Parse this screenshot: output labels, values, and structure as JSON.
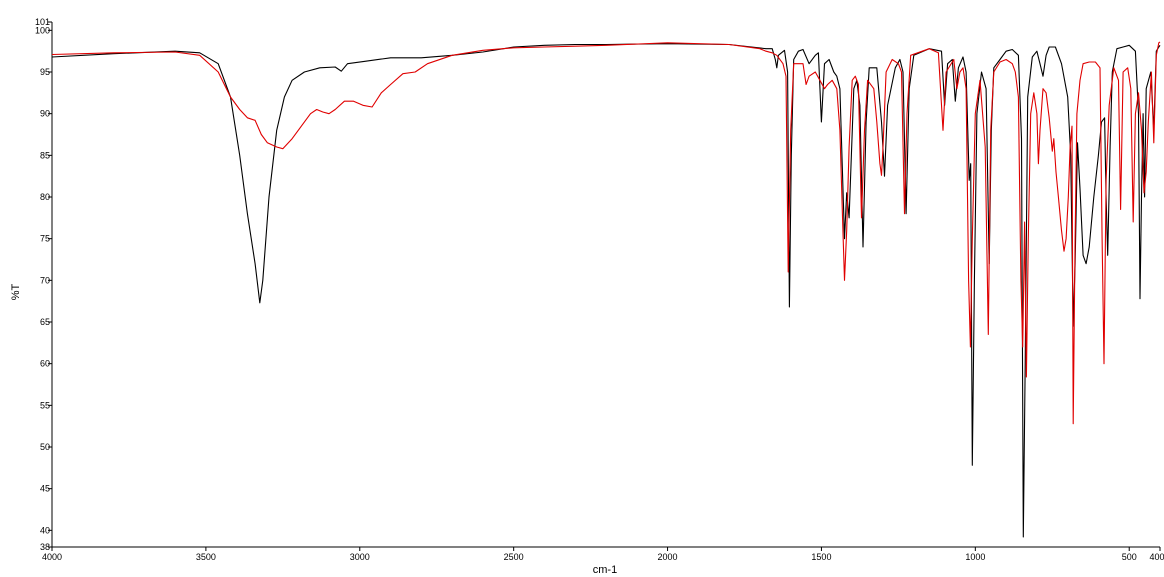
{
  "chart_data": {
    "type": "line",
    "title": "",
    "xlabel": "cm-1",
    "ylabel": "%T",
    "xlim": [
      4000,
      400
    ],
    "ylim": [
      38,
      101
    ],
    "x_reversed": true,
    "grid": false,
    "x_ticks": [
      4000,
      3500,
      3000,
      2500,
      2000,
      1500,
      1000,
      500,
      400
    ],
    "y_ticks": [
      38,
      40,
      45,
      50,
      55,
      60,
      65,
      70,
      75,
      80,
      85,
      90,
      95,
      100,
      101
    ],
    "series": [
      {
        "color": "#000000",
        "points": [
          [
            4000,
            96.8
          ],
          [
            3800,
            97.2
          ],
          [
            3600,
            97.5
          ],
          [
            3520,
            97.3
          ],
          [
            3460,
            96.0
          ],
          [
            3420,
            92.0
          ],
          [
            3390,
            85.0
          ],
          [
            3365,
            78.0
          ],
          [
            3340,
            72.0
          ],
          [
            3325,
            67.3
          ],
          [
            3315,
            70.0
          ],
          [
            3295,
            80.0
          ],
          [
            3270,
            88.0
          ],
          [
            3245,
            92.0
          ],
          [
            3220,
            94.0
          ],
          [
            3180,
            95.0
          ],
          [
            3130,
            95.5
          ],
          [
            3080,
            95.6
          ],
          [
            3060,
            95.1
          ],
          [
            3040,
            96.0
          ],
          [
            2980,
            96.3
          ],
          [
            2900,
            96.7
          ],
          [
            2800,
            96.7
          ],
          [
            2700,
            97.0
          ],
          [
            2600,
            97.4
          ],
          [
            2500,
            98.0
          ],
          [
            2400,
            98.2
          ],
          [
            2300,
            98.3
          ],
          [
            2200,
            98.3
          ],
          [
            2000,
            98.4
          ],
          [
            1800,
            98.3
          ],
          [
            1680,
            97.8
          ],
          [
            1660,
            97.8
          ],
          [
            1650,
            96.5
          ],
          [
            1645,
            95.5
          ],
          [
            1640,
            97.0
          ],
          [
            1620,
            97.6
          ],
          [
            1610,
            95.0
          ],
          [
            1604,
            66.8
          ],
          [
            1598,
            85.0
          ],
          [
            1590,
            96.5
          ],
          [
            1575,
            97.5
          ],
          [
            1560,
            97.7
          ],
          [
            1540,
            96.0
          ],
          [
            1520,
            97.0
          ],
          [
            1510,
            97.3
          ],
          [
            1500,
            89.0
          ],
          [
            1490,
            96.0
          ],
          [
            1475,
            96.5
          ],
          [
            1460,
            95.0
          ],
          [
            1450,
            94.5
          ],
          [
            1440,
            93.0
          ],
          [
            1425,
            75.0
          ],
          [
            1418,
            80.5
          ],
          [
            1410,
            77.5
          ],
          [
            1395,
            93.0
          ],
          [
            1385,
            94.0
          ],
          [
            1375,
            91.0
          ],
          [
            1365,
            74.0
          ],
          [
            1355,
            89.0
          ],
          [
            1345,
            95.5
          ],
          [
            1320,
            95.5
          ],
          [
            1305,
            89.0
          ],
          [
            1295,
            82.5
          ],
          [
            1285,
            91.0
          ],
          [
            1260,
            95.5
          ],
          [
            1245,
            96.5
          ],
          [
            1235,
            95.0
          ],
          [
            1225,
            78.0
          ],
          [
            1215,
            93.0
          ],
          [
            1200,
            97.0
          ],
          [
            1150,
            97.8
          ],
          [
            1110,
            97.5
          ],
          [
            1100,
            91.0
          ],
          [
            1090,
            96.0
          ],
          [
            1075,
            96.5
          ],
          [
            1065,
            91.5
          ],
          [
            1055,
            95.5
          ],
          [
            1040,
            96.8
          ],
          [
            1030,
            95.0
          ],
          [
            1020,
            82.0
          ],
          [
            1015,
            84.0
          ],
          [
            1010,
            47.8
          ],
          [
            1003,
            70.0
          ],
          [
            995,
            90.0
          ],
          [
            980,
            95.0
          ],
          [
            965,
            93.0
          ],
          [
            955,
            72.0
          ],
          [
            948,
            88.0
          ],
          [
            940,
            95.5
          ],
          [
            920,
            96.5
          ],
          [
            900,
            97.5
          ],
          [
            880,
            97.7
          ],
          [
            860,
            97.0
          ],
          [
            850,
            87.0
          ],
          [
            844,
            39.2
          ],
          [
            838,
            60.0
          ],
          [
            830,
            92.0
          ],
          [
            815,
            96.8
          ],
          [
            800,
            97.5
          ],
          [
            790,
            96.0
          ],
          [
            780,
            94.5
          ],
          [
            770,
            97.0
          ],
          [
            760,
            98.0
          ],
          [
            740,
            98.0
          ],
          [
            720,
            96.0
          ],
          [
            700,
            92.0
          ],
          [
            690,
            85.0
          ],
          [
            682,
            64.5
          ],
          [
            676,
            72.0
          ],
          [
            668,
            86.5
          ],
          [
            660,
            81.0
          ],
          [
            650,
            73.0
          ],
          [
            640,
            72.0
          ],
          [
            630,
            74.0
          ],
          [
            615,
            80.0
          ],
          [
            600,
            85.0
          ],
          [
            590,
            89.0
          ],
          [
            580,
            89.5
          ],
          [
            575,
            80.0
          ],
          [
            570,
            73.0
          ],
          [
            562,
            86.0
          ],
          [
            555,
            95.0
          ],
          [
            540,
            97.8
          ],
          [
            520,
            98.0
          ],
          [
            500,
            98.2
          ],
          [
            480,
            97.5
          ],
          [
            470,
            90.0
          ],
          [
            465,
            67.8
          ],
          [
            460,
            80.0
          ],
          [
            455,
            90.0
          ],
          [
            450,
            80.0
          ],
          [
            445,
            93.0
          ],
          [
            430,
            95.0
          ],
          [
            420,
            88.0
          ],
          [
            412,
            97.5
          ],
          [
            404,
            98.0
          ],
          [
            400,
            98.2
          ]
        ]
      },
      {
        "color": "#e00000",
        "points": [
          [
            4000,
            97.1
          ],
          [
            3800,
            97.3
          ],
          [
            3600,
            97.4
          ],
          [
            3520,
            97.0
          ],
          [
            3460,
            95.0
          ],
          [
            3420,
            92.0
          ],
          [
            3390,
            90.5
          ],
          [
            3365,
            89.5
          ],
          [
            3340,
            89.2
          ],
          [
            3320,
            87.5
          ],
          [
            3300,
            86.5
          ],
          [
            3270,
            86.0
          ],
          [
            3250,
            85.8
          ],
          [
            3220,
            87.0
          ],
          [
            3190,
            88.5
          ],
          [
            3160,
            90.0
          ],
          [
            3140,
            90.5
          ],
          [
            3120,
            90.2
          ],
          [
            3100,
            90.0
          ],
          [
            3080,
            90.5
          ],
          [
            3050,
            91.5
          ],
          [
            3020,
            91.5
          ],
          [
            2990,
            91.0
          ],
          [
            2960,
            90.8
          ],
          [
            2930,
            92.5
          ],
          [
            2900,
            93.5
          ],
          [
            2860,
            94.8
          ],
          [
            2820,
            95.0
          ],
          [
            2780,
            96.0
          ],
          [
            2700,
            97.0
          ],
          [
            2600,
            97.6
          ],
          [
            2500,
            97.9
          ],
          [
            2400,
            98.0
          ],
          [
            2300,
            98.1
          ],
          [
            2200,
            98.2
          ],
          [
            2000,
            98.5
          ],
          [
            1800,
            98.3
          ],
          [
            1700,
            97.8
          ],
          [
            1680,
            97.5
          ],
          [
            1660,
            97.3
          ],
          [
            1645,
            97.0
          ],
          [
            1625,
            96.0
          ],
          [
            1615,
            94.5
          ],
          [
            1608,
            71.0
          ],
          [
            1600,
            88.0
          ],
          [
            1590,
            96.0
          ],
          [
            1575,
            96.0
          ],
          [
            1560,
            96.0
          ],
          [
            1550,
            93.5
          ],
          [
            1540,
            94.5
          ],
          [
            1520,
            95.0
          ],
          [
            1505,
            94.0
          ],
          [
            1490,
            93.0
          ],
          [
            1480,
            93.5
          ],
          [
            1465,
            94.0
          ],
          [
            1450,
            93.0
          ],
          [
            1440,
            88.0
          ],
          [
            1432,
            78.0
          ],
          [
            1425,
            70.0
          ],
          [
            1418,
            76.0
          ],
          [
            1410,
            86.0
          ],
          [
            1400,
            94.0
          ],
          [
            1390,
            94.5
          ],
          [
            1380,
            93.5
          ],
          [
            1370,
            77.5
          ],
          [
            1360,
            88.0
          ],
          [
            1350,
            94.0
          ],
          [
            1330,
            93.0
          ],
          [
            1320,
            89.0
          ],
          [
            1310,
            84.0
          ],
          [
            1305,
            82.6
          ],
          [
            1300,
            86.0
          ],
          [
            1290,
            95.0
          ],
          [
            1270,
            96.5
          ],
          [
            1250,
            96.0
          ],
          [
            1240,
            95.0
          ],
          [
            1230,
            78.0
          ],
          [
            1222,
            90.0
          ],
          [
            1210,
            97.0
          ],
          [
            1150,
            97.8
          ],
          [
            1120,
            97.3
          ],
          [
            1105,
            88.0
          ],
          [
            1095,
            95.0
          ],
          [
            1070,
            96.5
          ],
          [
            1060,
            93.0
          ],
          [
            1050,
            95.0
          ],
          [
            1040,
            95.5
          ],
          [
            1030,
            93.0
          ],
          [
            1022,
            70.0
          ],
          [
            1016,
            62.0
          ],
          [
            1010,
            75.0
          ],
          [
            1000,
            90.0
          ],
          [
            985,
            94.0
          ],
          [
            968,
            86.0
          ],
          [
            958,
            63.5
          ],
          [
            950,
            88.0
          ],
          [
            940,
            95.0
          ],
          [
            920,
            96.2
          ],
          [
            900,
            96.5
          ],
          [
            880,
            96.0
          ],
          [
            870,
            95.0
          ],
          [
            860,
            92.0
          ],
          [
            852,
            70.0
          ],
          [
            846,
            62.0
          ],
          [
            840,
            77.0
          ],
          [
            834,
            58.4
          ],
          [
            828,
            75.0
          ],
          [
            820,
            90.0
          ],
          [
            810,
            92.5
          ],
          [
            800,
            90.0
          ],
          [
            795,
            84.0
          ],
          [
            790,
            88.0
          ],
          [
            780,
            93.0
          ],
          [
            770,
            92.5
          ],
          [
            760,
            89.5
          ],
          [
            750,
            85.5
          ],
          [
            745,
            87.0
          ],
          [
            738,
            83.0
          ],
          [
            730,
            80.0
          ],
          [
            720,
            76.0
          ],
          [
            712,
            73.5
          ],
          [
            705,
            75.0
          ],
          [
            698,
            80.0
          ],
          [
            692,
            86.0
          ],
          [
            686,
            88.5
          ],
          [
            682,
            52.8
          ],
          [
            676,
            75.0
          ],
          [
            670,
            90.0
          ],
          [
            660,
            94.0
          ],
          [
            650,
            96.0
          ],
          [
            630,
            96.2
          ],
          [
            610,
            96.2
          ],
          [
            595,
            95.5
          ],
          [
            588,
            75.0
          ],
          [
            582,
            60.0
          ],
          [
            575,
            82.0
          ],
          [
            565,
            91.0
          ],
          [
            550,
            95.5
          ],
          [
            535,
            94.0
          ],
          [
            528,
            78.5
          ],
          [
            520,
            95.0
          ],
          [
            505,
            95.5
          ],
          [
            495,
            93.0
          ],
          [
            487,
            77.0
          ],
          [
            480,
            90.0
          ],
          [
            470,
            92.5
          ],
          [
            460,
            88.0
          ],
          [
            452,
            80.5
          ],
          [
            445,
            83.0
          ],
          [
            438,
            89.0
          ],
          [
            428,
            95.0
          ],
          [
            420,
            86.5
          ],
          [
            412,
            97.0
          ],
          [
            404,
            98.5
          ],
          [
            400,
            98.6
          ]
        ]
      }
    ]
  }
}
